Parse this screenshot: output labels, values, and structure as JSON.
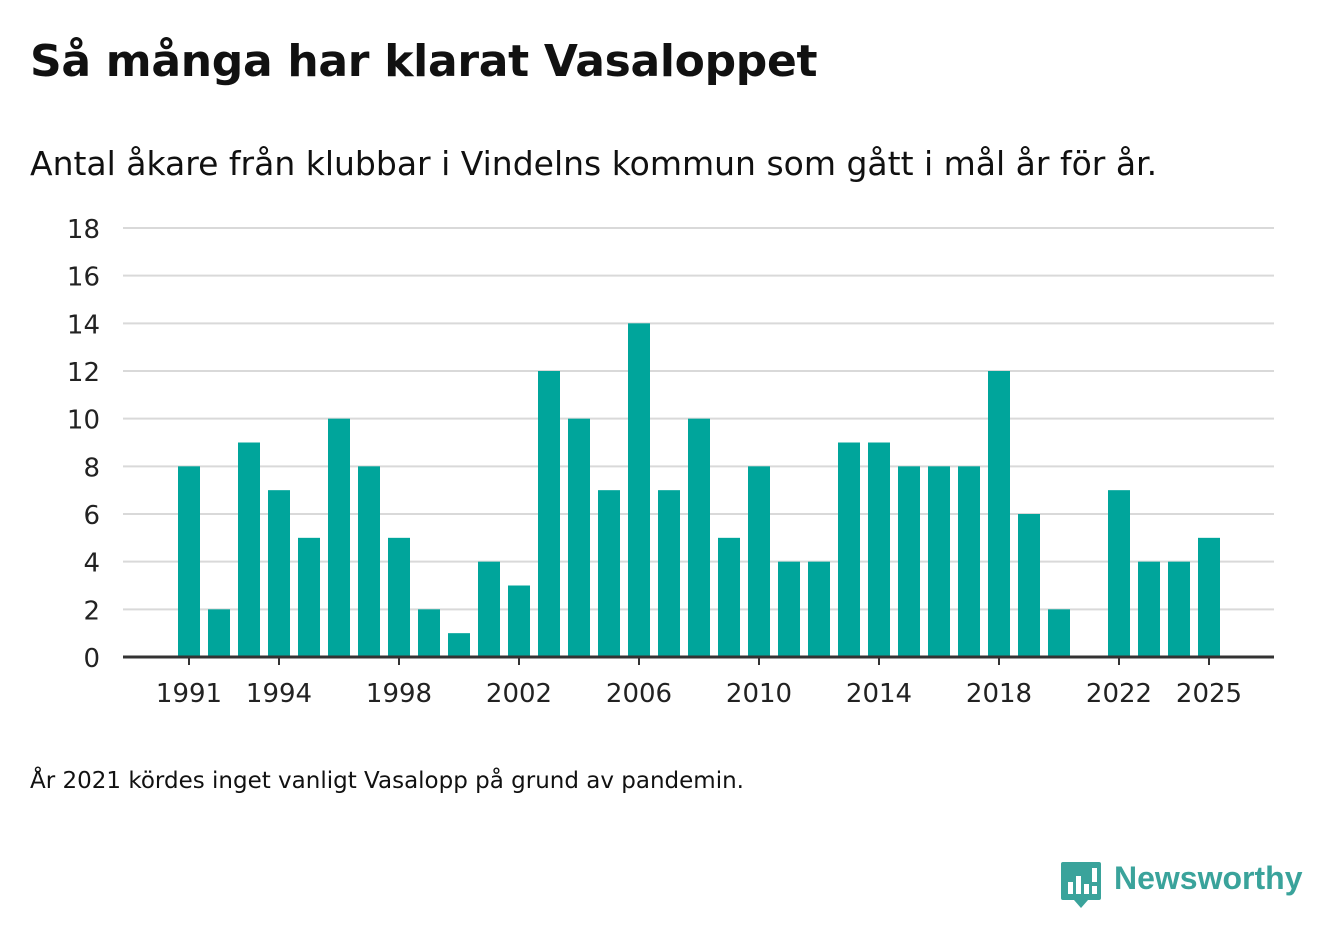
{
  "header": {
    "title": "Så många har klarat Vasaloppet",
    "subtitle": "Antal åkare från klubbar i Vindelns kommun som gått i mål år för år."
  },
  "footer": {
    "note": "År 2021 kördes inget vanligt Vasalopp på grund av pandemin.",
    "brand": "Newsworthy"
  },
  "colors": {
    "bar": "#00a59b",
    "brand": "#3aa39b",
    "grid": "#d9d9d9",
    "axis": "#333333",
    "text": "#111111"
  },
  "chart_data": {
    "type": "bar",
    "title": "Så många har klarat Vasaloppet",
    "subtitle": "Antal åkare från klubbar i Vindelns kommun som gått i mål år för år.",
    "xlabel": "",
    "ylabel": "",
    "categories": [
      1991,
      1992,
      1993,
      1994,
      1995,
      1996,
      1997,
      1998,
      1999,
      2000,
      2001,
      2002,
      2003,
      2004,
      2005,
      2006,
      2007,
      2008,
      2009,
      2010,
      2011,
      2012,
      2013,
      2014,
      2015,
      2016,
      2017,
      2018,
      2019,
      2020,
      2021,
      2022,
      2023,
      2024,
      2025
    ],
    "values": [
      8,
      2,
      9,
      7,
      5,
      10,
      8,
      5,
      2,
      1,
      4,
      3,
      12,
      10,
      7,
      14,
      7,
      10,
      5,
      8,
      4,
      4,
      9,
      9,
      8,
      8,
      8,
      12,
      6,
      2,
      null,
      7,
      4,
      4,
      5
    ],
    "ylim": [
      0,
      18
    ],
    "yticks": [
      "0",
      "2",
      "4",
      "6",
      "8",
      "10",
      "12",
      "14",
      "16",
      "18"
    ],
    "xticks": [
      "1991",
      "1994",
      "1998",
      "2002",
      "2006",
      "2010",
      "2014",
      "2018",
      "2022",
      "2025"
    ],
    "grid": true,
    "legend": "none"
  }
}
